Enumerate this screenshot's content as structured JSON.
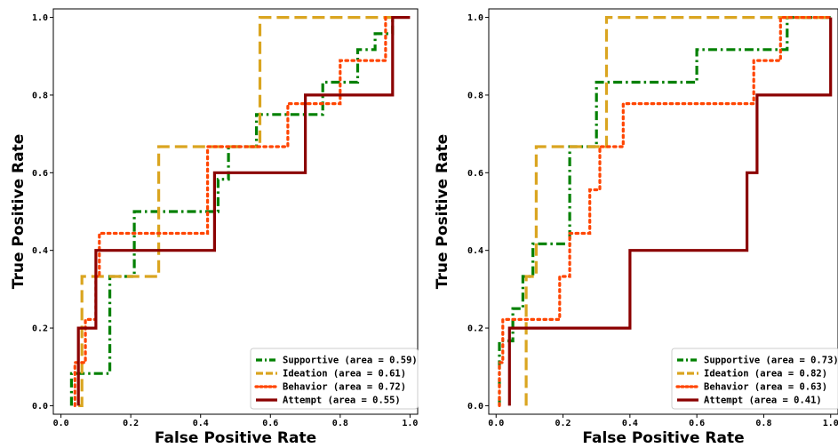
{
  "chart_data": [
    {
      "type": "line",
      "xlabel": "False Positive Rate",
      "ylabel": "True Positive Rate",
      "xlim": [
        0.0,
        1.0
      ],
      "ylim": [
        0.0,
        1.0
      ],
      "xticks": [
        "0.0",
        "0.2",
        "0.4",
        "0.6",
        "0.8",
        "1.0"
      ],
      "yticks": [
        "0.0",
        "0.2",
        "0.4",
        "0.6",
        "0.8",
        "1.0"
      ],
      "grid": false,
      "legend_position": "bottom-right",
      "series": [
        {
          "name": "Supportive (area = 0.59)",
          "color": "#008000",
          "style": "dashdot",
          "x": [
            0.03,
            0.03,
            0.14,
            0.14,
            0.21,
            0.21,
            0.45,
            0.45,
            0.48,
            0.48,
            0.56,
            0.56,
            0.75,
            0.75,
            0.85,
            0.85,
            0.9,
            0.9,
            0.95,
            0.95
          ],
          "y": [
            0.0,
            0.083,
            0.083,
            0.333,
            0.333,
            0.5,
            0.5,
            0.583,
            0.583,
            0.667,
            0.667,
            0.75,
            0.75,
            0.833,
            0.833,
            0.917,
            0.917,
            0.958,
            0.958,
            1.0
          ]
        },
        {
          "name": "Ideation (area = 0.61)",
          "color": "#DAA520",
          "style": "dashed",
          "x": [
            0.05,
            0.06,
            0.06,
            0.28,
            0.28,
            0.57,
            0.57,
            0.95
          ],
          "y": [
            0.0,
            0.0,
            0.333,
            0.333,
            0.667,
            0.667,
            1.0,
            1.0
          ]
        },
        {
          "name": "Behavior (area = 0.72)",
          "color": "#FF4500",
          "style": "dotted",
          "x": [
            0.04,
            0.04,
            0.07,
            0.07,
            0.1,
            0.1,
            0.11,
            0.11,
            0.42,
            0.42,
            0.5,
            0.5,
            0.65,
            0.65,
            0.75,
            0.75,
            0.8,
            0.8,
            0.86,
            0.86,
            0.93,
            0.93
          ],
          "y": [
            0.0,
            0.111,
            0.111,
            0.222,
            0.222,
            0.333,
            0.333,
            0.444,
            0.444,
            0.667,
            0.667,
            0.667,
            0.667,
            0.778,
            0.778,
            0.778,
            0.778,
            0.889,
            0.889,
            0.889,
            0.889,
            1.0
          ]
        },
        {
          "name": "Attempt (area = 0.55)",
          "color": "#8B0000",
          "style": "solid",
          "x": [
            0.05,
            0.05,
            0.1,
            0.1,
            0.44,
            0.44,
            0.7,
            0.7,
            0.95,
            0.95,
            1.0
          ],
          "y": [
            0.0,
            0.2,
            0.2,
            0.4,
            0.4,
            0.6,
            0.6,
            0.8,
            0.8,
            1.0,
            1.0
          ]
        }
      ]
    },
    {
      "type": "line",
      "xlabel": "False Positive Rate",
      "ylabel": "True Positive Rate",
      "xlim": [
        0.0,
        1.0
      ],
      "ylim": [
        0.0,
        1.0
      ],
      "xticks": [
        "0.0",
        "0.2",
        "0.4",
        "0.6",
        "0.8",
        "1.0"
      ],
      "yticks": [
        "0.0",
        "0.2",
        "0.4",
        "0.6",
        "0.8",
        "1.0"
      ],
      "grid": false,
      "legend_position": "bottom-right",
      "series": [
        {
          "name": "Supportive (area = 0.73)",
          "color": "#008000",
          "style": "dashdot",
          "x": [
            0.01,
            0.01,
            0.05,
            0.05,
            0.08,
            0.08,
            0.11,
            0.11,
            0.14,
            0.14,
            0.22,
            0.22,
            0.25,
            0.25,
            0.3,
            0.3,
            0.6,
            0.6,
            0.87,
            0.87,
            1.0
          ],
          "y": [
            0.0,
            0.167,
            0.167,
            0.25,
            0.25,
            0.333,
            0.333,
            0.417,
            0.417,
            0.417,
            0.417,
            0.667,
            0.667,
            0.667,
            0.667,
            0.833,
            0.833,
            0.917,
            0.917,
            1.0,
            1.0
          ]
        },
        {
          "name": "Ideation (area = 0.82)",
          "color": "#DAA520",
          "style": "dashed",
          "x": [
            0.09,
            0.09,
            0.12,
            0.12,
            0.33,
            0.33,
            1.0
          ],
          "y": [
            0.0,
            0.333,
            0.333,
            0.667,
            0.667,
            1.0,
            1.0
          ]
        },
        {
          "name": "Behavior (area = 0.63)",
          "color": "#FF4500",
          "style": "dotted",
          "x": [
            0.01,
            0.01,
            0.02,
            0.02,
            0.19,
            0.19,
            0.22,
            0.22,
            0.28,
            0.28,
            0.31,
            0.31,
            0.38,
            0.38,
            0.5,
            0.5,
            0.77,
            0.77,
            0.85,
            0.85,
            0.92,
            0.92,
            1.0
          ],
          "y": [
            0.0,
            0.111,
            0.111,
            0.222,
            0.222,
            0.333,
            0.333,
            0.444,
            0.444,
            0.556,
            0.556,
            0.667,
            0.667,
            0.778,
            0.778,
            0.778,
            0.778,
            0.889,
            0.889,
            1.0,
            1.0,
            1.0,
            1.0
          ]
        },
        {
          "name": "Attempt (area = 0.41)",
          "color": "#8B0000",
          "style": "solid",
          "x": [
            0.04,
            0.04,
            0.4,
            0.4,
            0.75,
            0.75,
            0.78,
            0.78,
            1.0,
            1.0
          ],
          "y": [
            0.0,
            0.2,
            0.2,
            0.4,
            0.4,
            0.6,
            0.6,
            0.8,
            0.8,
            1.0
          ]
        }
      ]
    }
  ]
}
